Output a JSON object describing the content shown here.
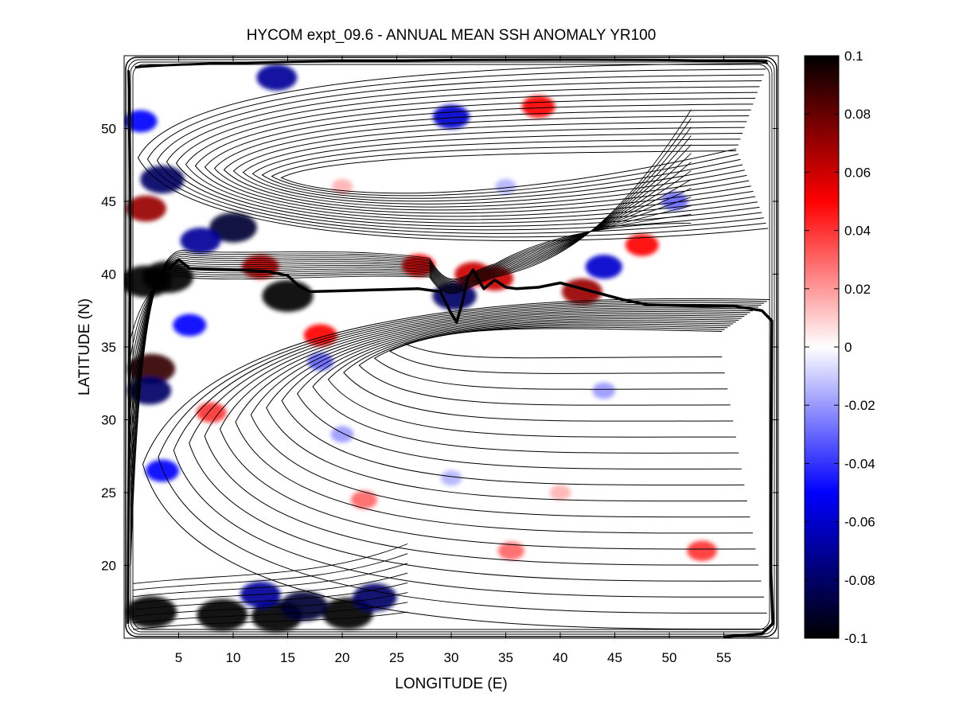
{
  "chart_data": {
    "type": "heatmap",
    "title": "HYCOM expt_09.6 - ANNUAL MEAN SSH ANOMALY YR100",
    "xlabel": "LONGITUDE (E)",
    "ylabel": "LATITUDE (N)",
    "xlim": [
      0,
      60
    ],
    "ylim": [
      15,
      55
    ],
    "x_ticks": [
      5,
      10,
      15,
      20,
      25,
      30,
      35,
      40,
      45,
      50,
      55
    ],
    "y_ticks": [
      20,
      25,
      30,
      35,
      40,
      45,
      50
    ],
    "x_tick_labels": [
      "5",
      "10",
      "15",
      "20",
      "25",
      "30",
      "35",
      "40",
      "45",
      "50",
      "55"
    ],
    "y_tick_labels": [
      "20",
      "25",
      "30",
      "35",
      "40",
      "45",
      "50"
    ],
    "colorbar": {
      "range": [
        -0.1,
        0.1
      ],
      "ticks": [
        0.1,
        0.08,
        0.06,
        0.04,
        0.02,
        0,
        -0.02,
        -0.04,
        -0.06,
        -0.08,
        -0.1
      ],
      "tick_labels": [
        "0.1",
        "0.08",
        "0.06",
        "0.04",
        "0.02",
        "0",
        "-0.02",
        "-0.04",
        "-0.06",
        "-0.08",
        "-0.1"
      ],
      "colormap": [
        "#000000",
        "#0000ff",
        "#ffffff",
        "#ff0000",
        "#000000"
      ]
    },
    "grid": false,
    "anomalies": [
      {
        "lon": 2.5,
        "lat": 16.8,
        "value": 0.1
      },
      {
        "lon": 14.0,
        "lat": 16.5,
        "value": 0.1
      },
      {
        "lon": 20.5,
        "lat": 16.7,
        "value": 0.1
      },
      {
        "lon": 9.0,
        "lat": 16.6,
        "value": -0.1
      },
      {
        "lon": 16.5,
        "lat": 17.2,
        "value": -0.09
      },
      {
        "lon": 23.0,
        "lat": 17.8,
        "value": -0.08
      },
      {
        "lon": 12.5,
        "lat": 18.0,
        "value": -0.07
      },
      {
        "lon": 4.0,
        "lat": 39.8,
        "value": 0.1
      },
      {
        "lon": 2.5,
        "lat": 33.5,
        "value": 0.09
      },
      {
        "lon": 2.0,
        "lat": 44.5,
        "value": 0.07
      },
      {
        "lon": 2.0,
        "lat": 39.5,
        "value": -0.1
      },
      {
        "lon": 2.3,
        "lat": 32.0,
        "value": -0.08
      },
      {
        "lon": 3.5,
        "lat": 46.5,
        "value": -0.08
      },
      {
        "lon": 10.0,
        "lat": 43.2,
        "value": -0.09
      },
      {
        "lon": 7.0,
        "lat": 42.3,
        "value": -0.07
      },
      {
        "lon": 15.0,
        "lat": 38.5,
        "value": -0.1
      },
      {
        "lon": 12.5,
        "lat": 40.5,
        "value": 0.06
      },
      {
        "lon": 30.3,
        "lat": 38.5,
        "value": -0.08
      },
      {
        "lon": 32.0,
        "lat": 40.0,
        "value": 0.06
      },
      {
        "lon": 34.0,
        "lat": 39.7,
        "value": 0.06
      },
      {
        "lon": 27.0,
        "lat": 40.6,
        "value": 0.05
      },
      {
        "lon": 44.0,
        "lat": 40.5,
        "value": -0.06
      },
      {
        "lon": 42.0,
        "lat": 38.8,
        "value": 0.07
      },
      {
        "lon": 47.5,
        "lat": 42.0,
        "value": 0.05
      },
      {
        "lon": 38.0,
        "lat": 51.5,
        "value": 0.05
      },
      {
        "lon": 14.0,
        "lat": 53.5,
        "value": -0.07
      },
      {
        "lon": 30.0,
        "lat": 50.8,
        "value": -0.06
      },
      {
        "lon": 18.0,
        "lat": 35.8,
        "value": 0.05
      },
      {
        "lon": 6.0,
        "lat": 36.5,
        "value": -0.05
      },
      {
        "lon": 18.0,
        "lat": 34.0,
        "value": -0.03
      },
      {
        "lon": 8.0,
        "lat": 30.5,
        "value": 0.04
      },
      {
        "lon": 22.0,
        "lat": 24.5,
        "value": 0.03
      },
      {
        "lon": 35.5,
        "lat": 21.0,
        "value": 0.03
      },
      {
        "lon": 53.0,
        "lat": 21.0,
        "value": 0.04
      },
      {
        "lon": 20.0,
        "lat": 29.0,
        "value": -0.02
      },
      {
        "lon": 44.0,
        "lat": 32.0,
        "value": -0.02
      },
      {
        "lon": 50.5,
        "lat": 45.0,
        "value": -0.03
      },
      {
        "lon": 1.5,
        "lat": 50.5,
        "value": -0.05
      },
      {
        "lon": 3.5,
        "lat": 26.5,
        "value": -0.05
      },
      {
        "lon": 20.0,
        "lat": 46.0,
        "value": 0.015
      },
      {
        "lon": 35.0,
        "lat": 46.0,
        "value": -0.015
      },
      {
        "lon": 40.0,
        "lat": 25.0,
        "value": 0.015
      },
      {
        "lon": 30.0,
        "lat": 26.0,
        "value": -0.015
      }
    ],
    "mean_front": [
      [
        4.0,
        40.3
      ],
      [
        5.0,
        41.0
      ],
      [
        6.0,
        40.4
      ],
      [
        10.0,
        40.3
      ],
      [
        13.0,
        40.2
      ],
      [
        15.0,
        39.9
      ],
      [
        16.0,
        39.2
      ],
      [
        17.0,
        38.8
      ],
      [
        22.0,
        38.9
      ],
      [
        27.0,
        39.0
      ],
      [
        29.0,
        38.8
      ],
      [
        30.0,
        37.3
      ],
      [
        30.5,
        36.7
      ],
      [
        31.0,
        38.0
      ],
      [
        31.5,
        39.7
      ],
      [
        32.0,
        40.3
      ],
      [
        32.5,
        39.6
      ],
      [
        33.0,
        39.0
      ],
      [
        34.0,
        39.6
      ],
      [
        35.0,
        39.1
      ],
      [
        36.0,
        39.0
      ],
      [
        38.0,
        39.1
      ],
      [
        40.0,
        39.4
      ],
      [
        43.0,
        38.8
      ],
      [
        46.0,
        38.2
      ],
      [
        48.0,
        37.9
      ],
      [
        53.0,
        37.8
      ],
      [
        56.0,
        37.8
      ],
      [
        58.5,
        37.5
      ],
      [
        59.4,
        36.8
      ],
      [
        59.3,
        20.0
      ],
      [
        59.5,
        16.0
      ],
      [
        58.5,
        15.3
      ],
      [
        55.0,
        15.1
      ]
    ]
  }
}
